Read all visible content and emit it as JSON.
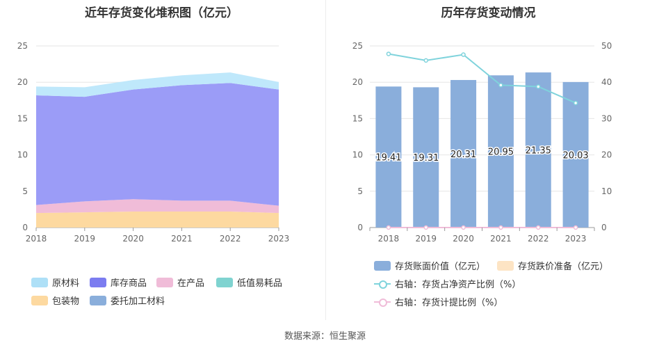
{
  "left": {
    "title": "近年存货变化堆积图（亿元）",
    "legend": [
      {
        "name": "原材料",
        "color": "#aee0f7"
      },
      {
        "name": "库存商品",
        "color": "#7b7cf0"
      },
      {
        "name": "在产品",
        "color": "#f0bcd8"
      },
      {
        "name": "低值易耗品",
        "color": "#7fd3d0"
      },
      {
        "name": "包装物",
        "color": "#fdd9a0"
      },
      {
        "name": "委托加工材料",
        "color": "#8aaedb"
      }
    ]
  },
  "right": {
    "title": "历年存货变动情况",
    "legend": [
      {
        "name": "存货账面价值（亿元）",
        "color": "#8aaedb",
        "kind": "bar"
      },
      {
        "name": "存货跌价准备（亿元）",
        "color": "#fde4c4",
        "kind": "bar"
      },
      {
        "name": "右轴：存货占净资产比例（%）",
        "color": "#7fd3dc",
        "kind": "line"
      },
      {
        "name": "右轴：存货计提比例（%）",
        "color": "#f0bcd8",
        "kind": "line"
      }
    ]
  },
  "source": "数据来源：恒生聚源",
  "chart_data": [
    {
      "type": "area",
      "title": "近年存货变化堆积图（亿元）",
      "stacked": true,
      "x": [
        "2018",
        "2019",
        "2020",
        "2021",
        "2022",
        "2023"
      ],
      "ylim": [
        0,
        25
      ],
      "yticks": [
        0,
        5,
        10,
        15,
        20,
        25
      ],
      "series": [
        {
          "name": "包装物",
          "color": "#fdd9a0",
          "values": [
            2.0,
            2.1,
            2.2,
            2.2,
            2.2,
            2.0
          ]
        },
        {
          "name": "在产品",
          "color": "#f0bcd8",
          "values": [
            1.1,
            1.5,
            1.7,
            1.5,
            1.5,
            1.0
          ]
        },
        {
          "name": "库存商品",
          "color": "#9b9cf7",
          "values": [
            15.1,
            14.4,
            15.1,
            15.9,
            16.2,
            16.0
          ]
        },
        {
          "name": "原材料",
          "color": "#bfe8fb",
          "values": [
            1.21,
            1.31,
            1.31,
            1.35,
            1.45,
            1.03
          ]
        }
      ]
    },
    {
      "type": "bar",
      "title": "历年存货变动情况",
      "categories": [
        "2018",
        "2019",
        "2020",
        "2021",
        "2022",
        "2023"
      ],
      "ylim": [
        0,
        25
      ],
      "yticks": [
        0,
        5,
        10,
        15,
        20,
        25
      ],
      "y2lim": [
        0,
        50
      ],
      "y2ticks": [
        0,
        10,
        20,
        30,
        40,
        50
      ],
      "series": [
        {
          "name": "存货账面价值（亿元）",
          "color": "#8aaedb",
          "axis": "left",
          "kind": "bar",
          "values": [
            19.41,
            19.31,
            20.31,
            20.95,
            21.35,
            20.03
          ],
          "labels": [
            "19.41",
            "19.31",
            "20.31",
            "20.95",
            "21.35",
            "20.03"
          ]
        },
        {
          "name": "存货跌价准备（亿元）",
          "color": "#fde4c4",
          "axis": "left",
          "kind": "bar",
          "values": [
            0,
            0,
            0,
            0,
            0,
            0
          ]
        },
        {
          "name": "右轴：存货占净资产比例（%）",
          "color": "#7fd3dc",
          "axis": "right",
          "kind": "line",
          "values": [
            47.8,
            46.0,
            47.6,
            39.2,
            38.8,
            34.3
          ]
        },
        {
          "name": "右轴：存货计提比例（%）",
          "color": "#f0bcd8",
          "axis": "right",
          "kind": "line",
          "values": [
            0,
            0,
            0,
            0,
            0,
            0
          ]
        }
      ]
    }
  ]
}
